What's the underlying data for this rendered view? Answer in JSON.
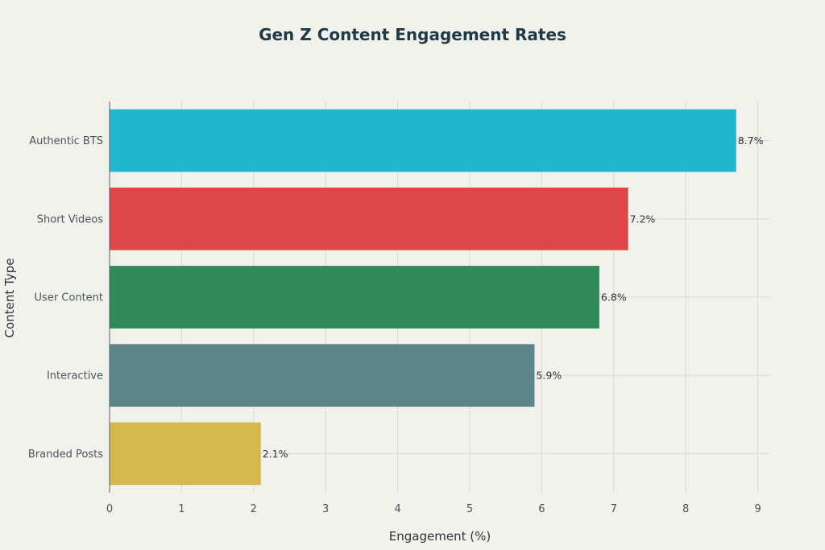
{
  "chart_data": {
    "type": "bar",
    "orientation": "horizontal",
    "title": "Gen Z Content Engagement Rates",
    "xlabel": "Engagement (%)",
    "ylabel": "Content Type",
    "categories": [
      "Authentic BTS",
      "Short Videos",
      "User Content",
      "Interactive",
      "Branded Posts"
    ],
    "values": [
      8.7,
      7.2,
      6.8,
      5.9,
      2.1
    ],
    "data_labels": [
      "8.7%",
      "7.2%",
      "6.8%",
      "5.9%",
      "2.1%"
    ],
    "colors": [
      "#21b7cc",
      "#dd4748",
      "#2e8b57",
      "#5e848b",
      "#d4b84c"
    ],
    "xlim": [
      0,
      9.2
    ],
    "xticks": [
      0,
      1,
      2,
      3,
      4,
      5,
      6,
      7,
      8,
      9
    ],
    "grid": true,
    "legend": "none"
  }
}
